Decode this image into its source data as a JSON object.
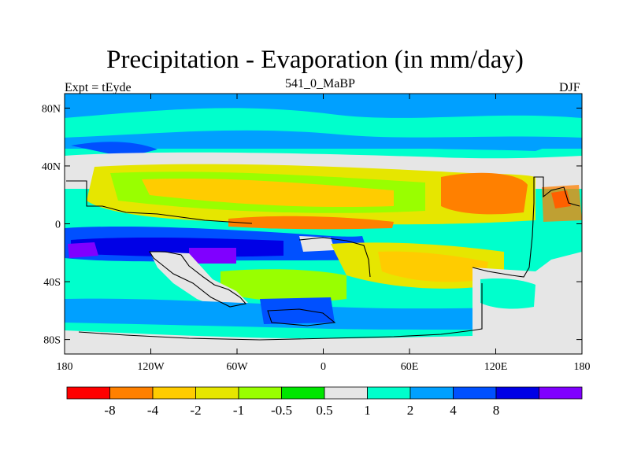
{
  "plot": {
    "title": "Precipitation - Evaporation (in mm/day)",
    "left_label": "Expt = tEyde",
    "center_label": "541_0_MaBP",
    "right_label": "DJF"
  },
  "axes": {
    "x_ticks": [
      "180",
      "120W",
      "60W",
      "0",
      "60E",
      "120E",
      "180"
    ],
    "y_ticks": [
      "80N",
      "40N",
      "0",
      "40S",
      "80S"
    ],
    "x_range": [
      -180,
      180
    ],
    "y_range": [
      -90,
      90
    ]
  },
  "colorbar": {
    "labels": [
      "-8",
      "-4",
      "-2",
      "-1",
      "-0.5",
      "0.5",
      "1",
      "2",
      "4",
      "8"
    ],
    "colors": [
      "#ff0000",
      "#ff8000",
      "#ffcc00",
      "#e6e600",
      "#99ff00",
      "#00e600",
      "#e6e6e6",
      "#00ffcc",
      "#00a0ff",
      "#0050ff",
      "#0000e6",
      "#8000ff"
    ]
  },
  "palette": {
    "land": "#e6e6e6",
    "ocean_base": "#00ffcc",
    "coast_line": "#000000"
  }
}
